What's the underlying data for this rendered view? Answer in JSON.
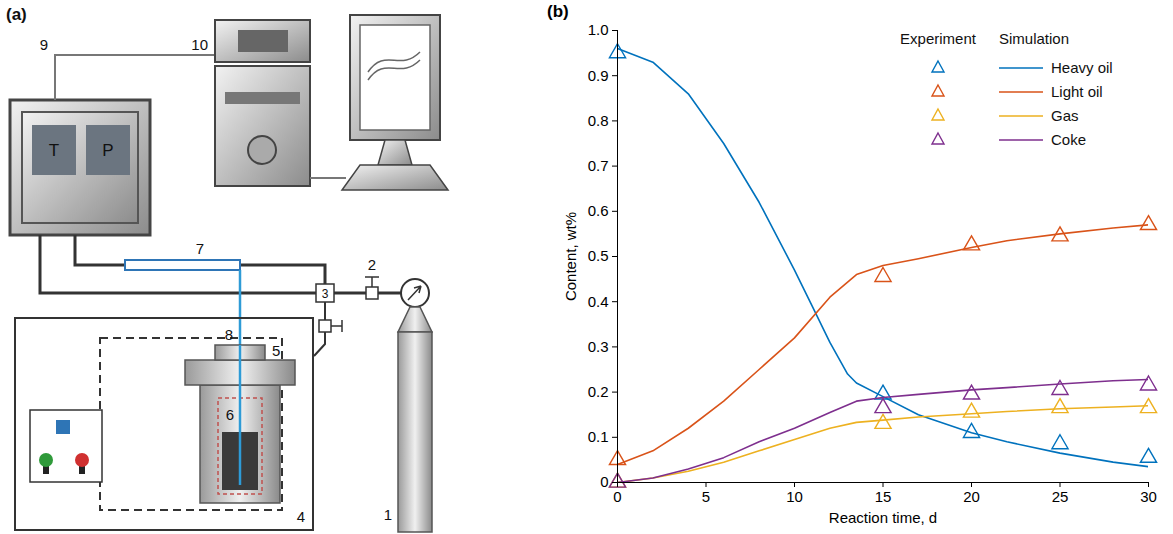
{
  "diagram": {
    "label": "(a)",
    "controller_displays": [
      "T",
      "P"
    ],
    "components": [
      "1",
      "2",
      "3",
      "4",
      "5",
      "6",
      "7",
      "8",
      "9",
      "10"
    ]
  },
  "chart_data": {
    "type": "line",
    "panel_label": "(b)",
    "x_label": "Reaction time, d",
    "y_label": "Content, wt%",
    "xlim": [
      0,
      30
    ],
    "xticks": [
      0,
      5,
      10,
      15,
      20,
      25,
      30
    ],
    "ylim": [
      0,
      1
    ],
    "yticks": [
      0,
      0.1,
      0.2,
      0.3,
      0.4,
      0.5,
      0.6,
      0.7,
      0.8,
      0.9,
      {
        "value": 1,
        "label": "1.0"
      }
    ],
    "legend": "upper right",
    "legend_columns": [
      "Experiment",
      "Simulation"
    ],
    "series": [
      {
        "name": "Heavy oil",
        "color": "#0072BD",
        "experiment": {
          "type": "scatter",
          "marker": "triangle",
          "x": [
            0,
            15,
            20,
            25,
            30
          ],
          "values": [
            0.95,
            0.195,
            0.11,
            0.085,
            0.055
          ]
        },
        "simulation": {
          "type": "line",
          "x": [
            0,
            2,
            4,
            6,
            8,
            10,
            11,
            12,
            13,
            13.5,
            15,
            17,
            20,
            22,
            25,
            28,
            30
          ],
          "values": [
            0.96,
            0.93,
            0.86,
            0.75,
            0.62,
            0.47,
            0.39,
            0.31,
            0.24,
            0.22,
            0.19,
            0.15,
            0.11,
            0.09,
            0.065,
            0.045,
            0.035
          ]
        }
      },
      {
        "name": "Light oil",
        "color": "#D95319",
        "experiment": {
          "type": "scatter",
          "marker": "triangle",
          "x": [
            0,
            15,
            20,
            25,
            30
          ],
          "values": [
            0.05,
            0.455,
            0.525,
            0.545,
            0.57
          ]
        },
        "simulation": {
          "type": "line",
          "x": [
            0,
            2,
            4,
            6,
            8,
            10,
            12,
            13.5,
            15,
            17,
            20,
            22,
            25,
            28,
            30
          ],
          "values": [
            0.04,
            0.07,
            0.12,
            0.18,
            0.25,
            0.32,
            0.41,
            0.46,
            0.48,
            0.495,
            0.52,
            0.535,
            0.55,
            0.563,
            0.57
          ]
        }
      },
      {
        "name": "Gas",
        "color": "#EDB120",
        "experiment": {
          "type": "scatter",
          "marker": "triangle",
          "x": [
            0,
            15,
            20,
            25,
            30
          ],
          "values": [
            0,
            0.13,
            0.155,
            0.165,
            0.165
          ]
        },
        "simulation": {
          "type": "line",
          "x": [
            0,
            2,
            4,
            6,
            8,
            10,
            12,
            13.5,
            15,
            17,
            20,
            22,
            25,
            28,
            30
          ],
          "values": [
            0,
            0.01,
            0.025,
            0.045,
            0.07,
            0.095,
            0.12,
            0.133,
            0.138,
            0.145,
            0.152,
            0.157,
            0.163,
            0.167,
            0.17
          ]
        }
      },
      {
        "name": "Coke",
        "color": "#7E2F8E",
        "experiment": {
          "type": "scatter",
          "marker": "triangle",
          "x": [
            0,
            15,
            20,
            25,
            30
          ],
          "values": [
            0,
            0.165,
            0.195,
            0.205,
            0.215
          ]
        },
        "simulation": {
          "type": "line",
          "x": [
            0,
            2,
            4,
            6,
            8,
            10,
            12,
            13.5,
            15,
            17,
            20,
            22,
            25,
            28,
            30
          ],
          "values": [
            0,
            0.01,
            0.03,
            0.055,
            0.09,
            0.12,
            0.155,
            0.18,
            0.188,
            0.195,
            0.205,
            0.21,
            0.218,
            0.225,
            0.228
          ]
        }
      }
    ]
  }
}
